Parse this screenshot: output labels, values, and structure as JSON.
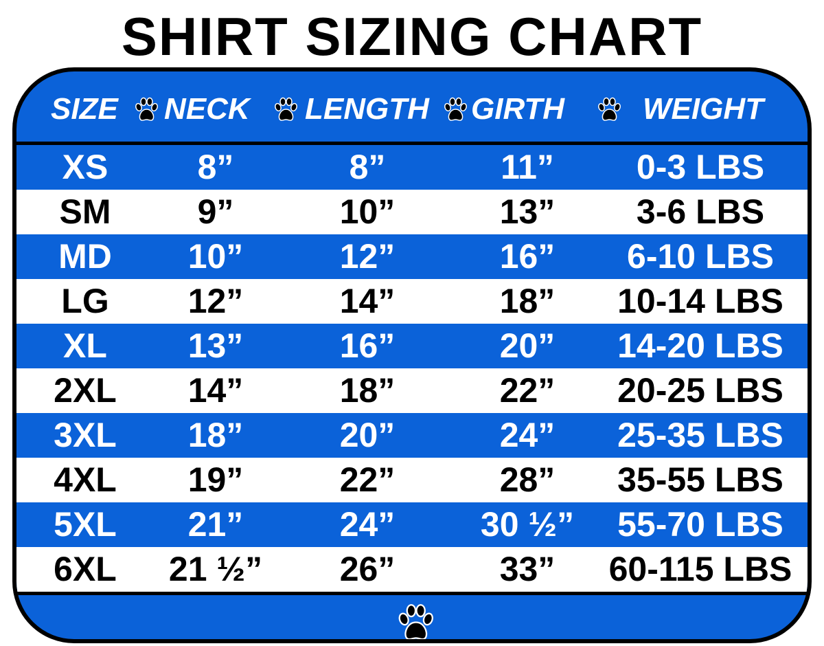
{
  "chart_data": {
    "type": "table",
    "title": "SHIRT SIZING CHART",
    "columns": [
      "SIZE",
      "NECK",
      "LENGTH",
      "GIRTH",
      "WEIGHT"
    ],
    "rows": [
      [
        "XS",
        "8”",
        "8”",
        "11”",
        "0-3 LBS"
      ],
      [
        "SM",
        "9”",
        "10”",
        "13”",
        "3-6 LBS"
      ],
      [
        "MD",
        "10”",
        "12”",
        "16”",
        "6-10 LBS"
      ],
      [
        "LG",
        "12”",
        "14”",
        "18”",
        "10-14 LBS"
      ],
      [
        "XL",
        "13”",
        "16”",
        "20”",
        "14-20 LBS"
      ],
      [
        "2XL",
        "14”",
        "18”",
        "22”",
        "20-25 LBS"
      ],
      [
        "3XL",
        "18”",
        "20”",
        "24”",
        "25-35 LBS"
      ],
      [
        "4XL",
        "19”",
        "22”",
        "28”",
        "35-55 LBS"
      ],
      [
        "5XL",
        "21”",
        "24”",
        "30 ½”",
        "55-70 LBS"
      ],
      [
        "6XL",
        "21 ½”",
        "26”",
        "33”",
        "60-115 LBS"
      ]
    ],
    "colors": {
      "blue": "#0b62d9",
      "white": "#ffffff",
      "text_dark": "#000000"
    },
    "separator_icon": "paw-print-icon"
  }
}
